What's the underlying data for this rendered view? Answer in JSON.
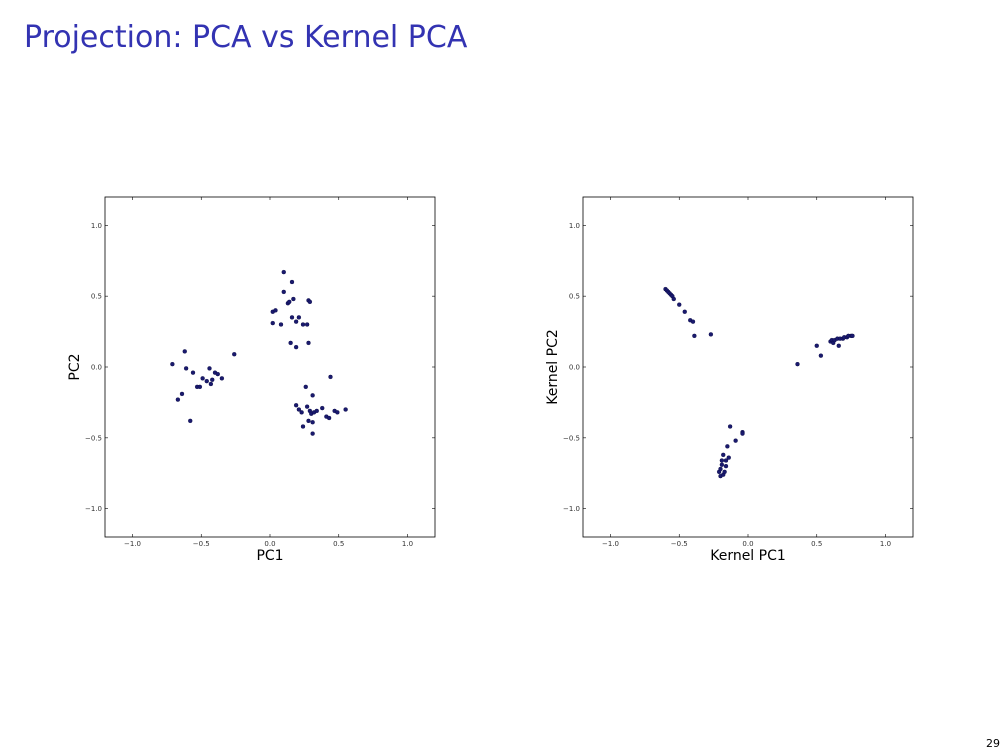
{
  "slide": {
    "title": "Projection: PCA vs Kernel PCA",
    "page_number": "29"
  },
  "chart_data": [
    {
      "type": "scatter",
      "title": "",
      "xlabel": "PC1",
      "ylabel": "PC2",
      "xlim": [
        -1.2,
        1.2
      ],
      "ylim": [
        -1.2,
        1.2
      ],
      "xticks": [
        -1.0,
        -0.5,
        0.0,
        0.5,
        1.0
      ],
      "yticks": [
        -1.0,
        -0.5,
        0.0,
        0.5,
        1.0
      ],
      "xtick_labels": [
        "−1.0",
        "−0.5",
        "0.0",
        "0.5",
        "1.0"
      ],
      "ytick_labels": [
        "−1.0",
        "−0.5",
        "0.0",
        "0.5",
        "1.0"
      ],
      "grid": false,
      "marker_color": "#1a1a6e",
      "points": [
        [
          -0.71,
          0.02
        ],
        [
          -0.67,
          -0.23
        ],
        [
          -0.64,
          -0.19
        ],
        [
          -0.62,
          0.11
        ],
        [
          -0.61,
          -0.01
        ],
        [
          -0.58,
          -0.38
        ],
        [
          -0.56,
          -0.04
        ],
        [
          -0.53,
          -0.14
        ],
        [
          -0.51,
          -0.14
        ],
        [
          -0.49,
          -0.08
        ],
        [
          -0.46,
          -0.1
        ],
        [
          -0.44,
          -0.01
        ],
        [
          -0.43,
          -0.12
        ],
        [
          -0.42,
          -0.09
        ],
        [
          -0.4,
          -0.04
        ],
        [
          -0.38,
          -0.05
        ],
        [
          -0.35,
          -0.08
        ],
        [
          -0.26,
          0.09
        ],
        [
          0.02,
          0.31
        ],
        [
          0.02,
          0.39
        ],
        [
          0.04,
          0.4
        ],
        [
          0.08,
          0.3
        ],
        [
          0.1,
          0.53
        ],
        [
          0.1,
          0.67
        ],
        [
          0.13,
          0.45
        ],
        [
          0.14,
          0.46
        ],
        [
          0.15,
          0.17
        ],
        [
          0.16,
          0.35
        ],
        [
          0.16,
          0.6
        ],
        [
          0.17,
          0.48
        ],
        [
          0.19,
          0.14
        ],
        [
          0.19,
          0.32
        ],
        [
          0.21,
          0.35
        ],
        [
          0.24,
          0.3
        ],
        [
          0.27,
          0.3
        ],
        [
          0.28,
          0.47
        ],
        [
          0.28,
          0.17
        ],
        [
          0.29,
          0.46
        ],
        [
          0.19,
          -0.27
        ],
        [
          0.21,
          -0.3
        ],
        [
          0.23,
          -0.32
        ],
        [
          0.24,
          -0.42
        ],
        [
          0.26,
          -0.14
        ],
        [
          0.27,
          -0.28
        ],
        [
          0.28,
          -0.38
        ],
        [
          0.29,
          -0.31
        ],
        [
          0.3,
          -0.33
        ],
        [
          0.31,
          -0.47
        ],
        [
          0.31,
          -0.2
        ],
        [
          0.31,
          -0.39
        ],
        [
          0.32,
          -0.32
        ],
        [
          0.34,
          -0.31
        ],
        [
          0.38,
          -0.29
        ],
        [
          0.41,
          -0.35
        ],
        [
          0.43,
          -0.36
        ],
        [
          0.44,
          -0.07
        ],
        [
          0.47,
          -0.31
        ],
        [
          0.49,
          -0.32
        ],
        [
          0.55,
          -0.3
        ]
      ]
    },
    {
      "type": "scatter",
      "title": "",
      "xlabel": "Kernel PC1",
      "ylabel": "Kernel PC2",
      "xlim": [
        -1.2,
        1.2
      ],
      "ylim": [
        -1.2,
        1.2
      ],
      "xticks": [
        -1.0,
        -0.5,
        0.0,
        0.5,
        1.0
      ],
      "yticks": [
        -1.0,
        -0.5,
        0.0,
        0.5,
        1.0
      ],
      "xtick_labels": [
        "−1.0",
        "−0.5",
        "0.0",
        "0.5",
        "1.0"
      ],
      "ytick_labels": [
        "−1.0",
        "−0.5",
        "0.0",
        "0.5",
        "1.0"
      ],
      "grid": false,
      "marker_color": "#1a1a6e",
      "points": [
        [
          -0.6,
          0.55
        ],
        [
          -0.59,
          0.54
        ],
        [
          -0.58,
          0.53
        ],
        [
          -0.57,
          0.52
        ],
        [
          -0.56,
          0.51
        ],
        [
          -0.55,
          0.5
        ],
        [
          -0.54,
          0.48
        ],
        [
          -0.5,
          0.44
        ],
        [
          -0.46,
          0.39
        ],
        [
          -0.42,
          0.33
        ],
        [
          -0.4,
          0.32
        ],
        [
          -0.39,
          0.22
        ],
        [
          -0.27,
          0.23
        ],
        [
          -0.21,
          -0.74
        ],
        [
          -0.2,
          -0.77
        ],
        [
          -0.2,
          -0.72
        ],
        [
          -0.19,
          -0.69
        ],
        [
          -0.19,
          -0.66
        ],
        [
          -0.18,
          -0.62
        ],
        [
          -0.18,
          -0.76
        ],
        [
          -0.17,
          -0.74
        ],
        [
          -0.16,
          -0.7
        ],
        [
          -0.16,
          -0.66
        ],
        [
          -0.15,
          -0.56
        ],
        [
          -0.14,
          -0.64
        ],
        [
          -0.13,
          -0.42
        ],
        [
          -0.09,
          -0.52
        ],
        [
          -0.04,
          -0.46
        ],
        [
          -0.04,
          -0.47
        ],
        [
          0.36,
          0.02
        ],
        [
          0.5,
          0.15
        ],
        [
          0.53,
          0.08
        ],
        [
          0.6,
          0.18
        ],
        [
          0.61,
          0.19
        ],
        [
          0.62,
          0.17
        ],
        [
          0.63,
          0.19
        ],
        [
          0.65,
          0.2
        ],
        [
          0.66,
          0.15
        ],
        [
          0.67,
          0.2
        ],
        [
          0.69,
          0.2
        ],
        [
          0.7,
          0.21
        ],
        [
          0.72,
          0.21
        ],
        [
          0.73,
          0.22
        ],
        [
          0.75,
          0.22
        ],
        [
          0.76,
          0.22
        ]
      ]
    }
  ]
}
